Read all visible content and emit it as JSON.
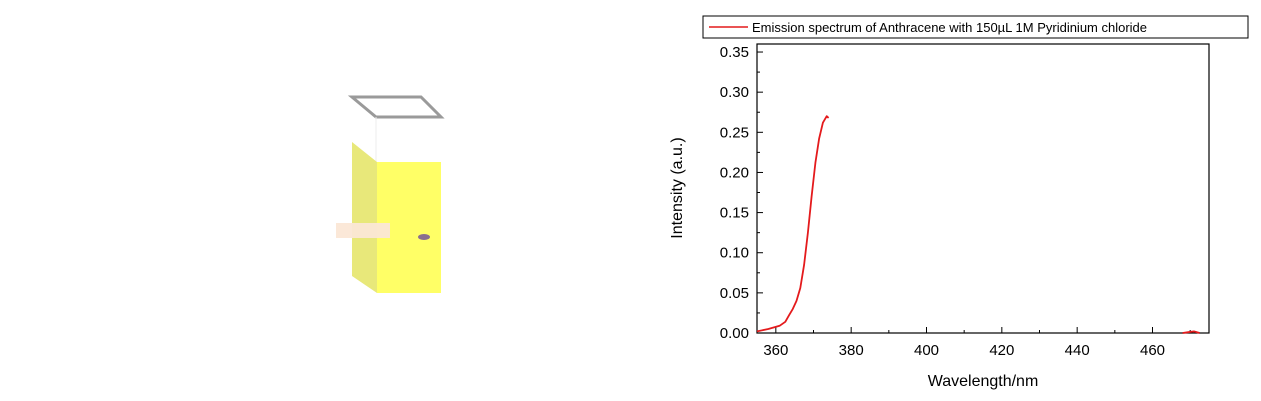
{
  "colors": {
    "series_line": "#e41a1c",
    "cuvette_fill": "#ffff66",
    "cuvette_side": "#e8e87a",
    "beam": "#fbe7d6",
    "sample_dot": "#8a6f8f"
  },
  "chart_data": {
    "type": "line",
    "xlabel": "Wavelength/nm",
    "ylabel": "Intensity (a.u.)",
    "xlim": [
      355,
      475
    ],
    "ylim": [
      0,
      0.36
    ],
    "xticks": [
      360,
      380,
      400,
      420,
      440,
      460
    ],
    "yticks": [
      0.0,
      0.05,
      0.1,
      0.15,
      0.2,
      0.25,
      0.3,
      0.35
    ],
    "ytick_labels": [
      "0.00",
      "0.05",
      "0.10",
      "0.15",
      "0.20",
      "0.25",
      "0.30",
      "0.35"
    ],
    "grid": false,
    "legend_position": "top",
    "series": [
      {
        "name": "Emission spectrum of Anthracene with 150µL 1M Pyridinium chloride",
        "x": [
          355,
          358,
          361,
          362.5,
          363.5,
          364.5,
          365.5,
          366.5,
          367.5,
          368.5,
          369.5,
          370.5,
          371.5,
          372.5,
          373.5,
          374.0
        ],
        "y": [
          0.002,
          0.005,
          0.009,
          0.014,
          0.022,
          0.03,
          0.04,
          0.056,
          0.085,
          0.125,
          0.17,
          0.212,
          0.242,
          0.262,
          0.27,
          0.268
        ]
      },
      {
        "name": "",
        "x": [
          468,
          469.5,
          471,
          472.5
        ],
        "y": [
          0.0,
          0.001,
          0.002,
          0.0
        ]
      }
    ]
  }
}
